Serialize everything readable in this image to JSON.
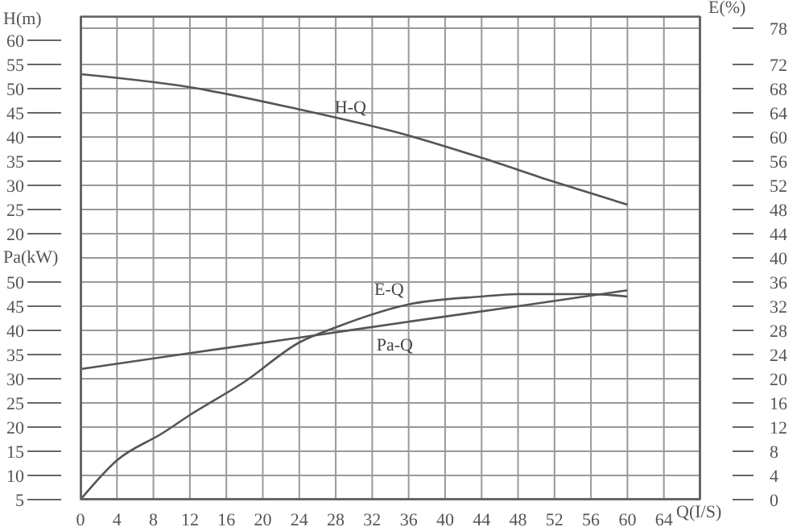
{
  "chart_data": {
    "type": "line",
    "xlabel": "Q(I/S)",
    "ylabel": "H(m)",
    "y2label": "E(%)",
    "y3label": "Pa(kW)",
    "xlim": [
      0,
      68
    ],
    "xticks": [
      0,
      4,
      8,
      12,
      16,
      20,
      24,
      28,
      32,
      36,
      40,
      44,
      48,
      52,
      56,
      60,
      64
    ],
    "ylim": [
      -35,
      65
    ],
    "yticks": [
      20,
      25,
      30,
      35,
      40,
      45,
      50,
      55,
      60
    ],
    "y2lim": [
      0,
      80
    ],
    "y2ticks": [
      0,
      4,
      8,
      12,
      16,
      20,
      24,
      28,
      32,
      36,
      40,
      44,
      48,
      52,
      56,
      60,
      64,
      68,
      72,
      78
    ],
    "y3lim": [
      5,
      105
    ],
    "y3ticks": [
      5,
      10,
      15,
      20,
      25,
      30,
      35,
      40,
      45,
      50
    ],
    "grid": true,
    "marker": "none",
    "line_style": "solid",
    "series": [
      {
        "name": "H-Q",
        "color": "#555555",
        "x": [
          0,
          12,
          24,
          36,
          44,
          52,
          60
        ],
        "values": [
          53,
          50.3,
          45.7,
          40.3,
          35.7,
          30.7,
          26
        ]
      },
      {
        "name": "E-Q",
        "color": "#555555",
        "axis": "y2",
        "x": [
          0,
          4,
          9,
          12,
          18,
          24,
          28,
          36,
          44,
          48,
          56,
          60
        ],
        "values": [
          0,
          6.5,
          11,
          14,
          19.5,
          26,
          28.5,
          32.3,
          33.6,
          34,
          34,
          33.6
        ]
      },
      {
        "name": "Pa-Q",
        "color": "#555555",
        "axis": "y3",
        "x": [
          0,
          12,
          24,
          36,
          48,
          60
        ],
        "values": [
          32,
          35.3,
          38.5,
          41.8,
          45,
          48.3
        ]
      }
    ]
  }
}
